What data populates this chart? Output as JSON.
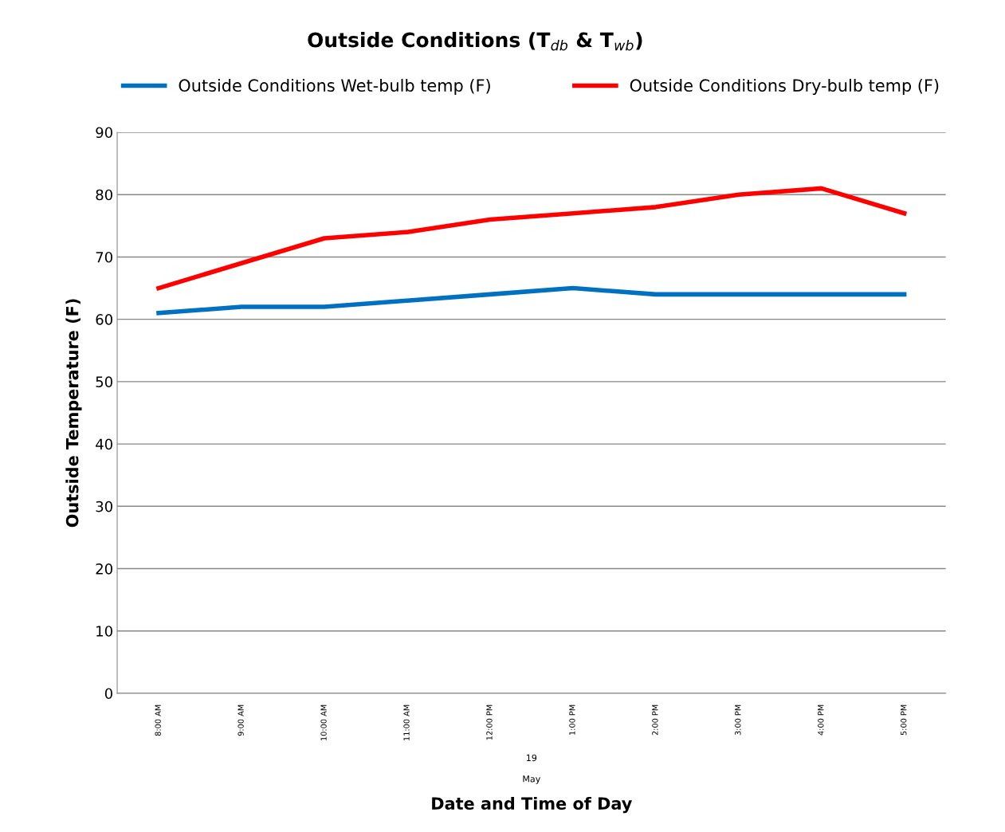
{
  "chart_data": {
    "type": "line",
    "title": "Outside Conditions (T$_{db}$ & T$_{wb}$)",
    "xlabel": "Date and Time of Day",
    "ylabel": "Outside Temperature (F)",
    "categories": [
      "8:00 AM",
      "9:00 AM",
      "10:00 AM",
      "11:00 AM",
      "12:00 PM",
      "1:00 PM",
      "2:00 PM",
      "3:00 PM",
      "4:00 PM",
      "5:00 PM"
    ],
    "series": [
      {
        "name": "Outside Conditions Wet-bulb temp (F)",
        "color": "#0070c0",
        "values": [
          61,
          62,
          62,
          63,
          64,
          65,
          64,
          64,
          64,
          64
        ]
      },
      {
        "name": "Outside Conditions Dry-bulb temp (F)",
        "color": "#ff0000",
        "values": [
          65,
          69,
          73,
          74,
          76,
          77,
          78,
          80,
          81,
          77
        ]
      }
    ],
    "ylim": [
      0,
      90
    ],
    "yticks": [
      0,
      10,
      20,
      30,
      40,
      50,
      60,
      70,
      80,
      90
    ],
    "grid": "y",
    "legend": "top",
    "marker": "none",
    "line_style": "solid",
    "annotations": [
      "19",
      "May"
    ]
  }
}
